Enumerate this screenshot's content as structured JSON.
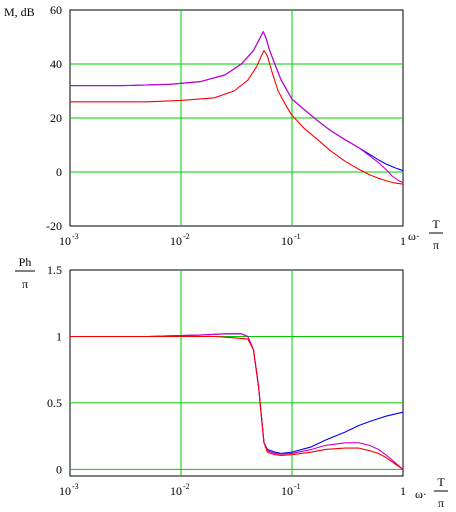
{
  "chart_data": [
    {
      "type": "line",
      "title": "",
      "ylabel": "M, dB",
      "xlabel": {
        "prefix": "ω·",
        "num": "T",
        "den": "π"
      },
      "x_scale": "log",
      "xlim": [
        0.001,
        1
      ],
      "ylim": [
        -20,
        60
      ],
      "x_ticks": [
        {
          "base": "10",
          "exp": "-3"
        },
        {
          "base": "10",
          "exp": "-2"
        },
        {
          "base": "10",
          "exp": "-1"
        },
        {
          "base": "1",
          "exp": ""
        }
      ],
      "y_ticks": [
        "-20",
        "0",
        "20",
        "40",
        "60"
      ],
      "y_tick_values": [
        -20,
        0,
        20,
        40,
        60
      ],
      "grid": true,
      "series": [
        {
          "color": "#0000ff",
          "points": [
            [
              0.001,
              32
            ],
            [
              0.003,
              32
            ],
            [
              0.008,
              32.5
            ],
            [
              0.015,
              33.5
            ],
            [
              0.025,
              36
            ],
            [
              0.035,
              40
            ],
            [
              0.045,
              45
            ],
            [
              0.052,
              50
            ],
            [
              0.055,
              52
            ],
            [
              0.058,
              50
            ],
            [
              0.063,
              45
            ],
            [
              0.07,
              40
            ],
            [
              0.08,
              34
            ],
            [
              0.1,
              27
            ],
            [
              0.13,
              23
            ],
            [
              0.17,
              19
            ],
            [
              0.22,
              15.5
            ],
            [
              0.3,
              12
            ],
            [
              0.4,
              9
            ],
            [
              0.5,
              6.5
            ],
            [
              0.6,
              4.5
            ],
            [
              0.7,
              3
            ],
            [
              0.85,
              1.5
            ],
            [
              1,
              0.5
            ]
          ]
        },
        {
          "color": "#cc00cc",
          "points": [
            [
              0.001,
              32
            ],
            [
              0.003,
              32
            ],
            [
              0.008,
              32.5
            ],
            [
              0.015,
              33.5
            ],
            [
              0.025,
              36
            ],
            [
              0.035,
              40
            ],
            [
              0.045,
              45
            ],
            [
              0.052,
              50
            ],
            [
              0.055,
              52
            ],
            [
              0.058,
              50
            ],
            [
              0.063,
              45
            ],
            [
              0.07,
              40
            ],
            [
              0.08,
              34
            ],
            [
              0.1,
              27
            ],
            [
              0.13,
              23
            ],
            [
              0.17,
              19
            ],
            [
              0.22,
              15.5
            ],
            [
              0.3,
              12
            ],
            [
              0.4,
              9
            ],
            [
              0.5,
              6
            ],
            [
              0.6,
              3.5
            ],
            [
              0.7,
              1
            ],
            [
              0.8,
              -1.5
            ],
            [
              0.9,
              -3
            ],
            [
              1,
              -4
            ]
          ]
        },
        {
          "color": "#ff0000",
          "points": [
            [
              0.001,
              26
            ],
            [
              0.005,
              26
            ],
            [
              0.01,
              26.5
            ],
            [
              0.02,
              27.5
            ],
            [
              0.03,
              30
            ],
            [
              0.04,
              34
            ],
            [
              0.048,
              39
            ],
            [
              0.053,
              43
            ],
            [
              0.056,
              45
            ],
            [
              0.06,
              43
            ],
            [
              0.065,
              38
            ],
            [
              0.075,
              30
            ],
            [
              0.09,
              24
            ],
            [
              0.1,
              21
            ],
            [
              0.13,
              16
            ],
            [
              0.17,
              12
            ],
            [
              0.22,
              8
            ],
            [
              0.3,
              4
            ],
            [
              0.4,
              1
            ],
            [
              0.5,
              -1
            ],
            [
              0.6,
              -2.3
            ],
            [
              0.7,
              -3.2
            ],
            [
              0.85,
              -4.1
            ],
            [
              1,
              -4.5
            ]
          ]
        }
      ]
    },
    {
      "type": "line",
      "title": "",
      "ylabel": {
        "num": "Ph",
        "den": "π"
      },
      "xlabel": {
        "prefix": "ω·",
        "num": "T",
        "den": "π"
      },
      "x_scale": "log",
      "xlim": [
        0.001,
        1
      ],
      "ylim": [
        -0.05,
        1.5
      ],
      "x_ticks": [
        {
          "base": "10",
          "exp": "-3"
        },
        {
          "base": "10",
          "exp": "-2"
        },
        {
          "base": "10",
          "exp": "-1"
        },
        {
          "base": "1",
          "exp": ""
        }
      ],
      "y_ticks": [
        "0",
        "0.5",
        "1",
        "1.5"
      ],
      "y_tick_values": [
        0,
        0.5,
        1,
        1.5
      ],
      "grid": true,
      "series": [
        {
          "color": "#0000ff",
          "points": [
            [
              0.001,
              1
            ],
            [
              0.005,
              1
            ],
            [
              0.008,
              1.005
            ],
            [
              0.015,
              1.01
            ],
            [
              0.025,
              1.02
            ],
            [
              0.035,
              1.02
            ],
            [
              0.04,
              1.0
            ],
            [
              0.045,
              0.9
            ],
            [
              0.05,
              0.62
            ],
            [
              0.053,
              0.4
            ],
            [
              0.056,
              0.2
            ],
            [
              0.06,
              0.15
            ],
            [
              0.07,
              0.13
            ],
            [
              0.08,
              0.12
            ],
            [
              0.1,
              0.13
            ],
            [
              0.15,
              0.17
            ],
            [
              0.2,
              0.22
            ],
            [
              0.3,
              0.28
            ],
            [
              0.4,
              0.33
            ],
            [
              0.5,
              0.36
            ],
            [
              0.7,
              0.4
            ],
            [
              1,
              0.43
            ]
          ]
        },
        {
          "color": "#cc00cc",
          "points": [
            [
              0.001,
              1
            ],
            [
              0.005,
              1
            ],
            [
              0.008,
              1.005
            ],
            [
              0.015,
              1.01
            ],
            [
              0.025,
              1.02
            ],
            [
              0.035,
              1.02
            ],
            [
              0.04,
              1.0
            ],
            [
              0.045,
              0.9
            ],
            [
              0.05,
              0.62
            ],
            [
              0.053,
              0.4
            ],
            [
              0.056,
              0.2
            ],
            [
              0.06,
              0.14
            ],
            [
              0.07,
              0.12
            ],
            [
              0.08,
              0.115
            ],
            [
              0.1,
              0.12
            ],
            [
              0.15,
              0.15
            ],
            [
              0.2,
              0.18
            ],
            [
              0.3,
              0.2
            ],
            [
              0.4,
              0.2
            ],
            [
              0.5,
              0.18
            ],
            [
              0.6,
              0.15
            ],
            [
              0.7,
              0.11
            ],
            [
              0.85,
              0.05
            ],
            [
              1,
              0.0
            ]
          ]
        },
        {
          "color": "#ff0000",
          "points": [
            [
              0.001,
              1
            ],
            [
              0.01,
              1
            ],
            [
              0.02,
              1
            ],
            [
              0.03,
              0.99
            ],
            [
              0.04,
              0.98
            ],
            [
              0.045,
              0.9
            ],
            [
              0.05,
              0.62
            ],
            [
              0.053,
              0.4
            ],
            [
              0.056,
              0.2
            ],
            [
              0.06,
              0.13
            ],
            [
              0.07,
              0.11
            ],
            [
              0.08,
              0.105
            ],
            [
              0.1,
              0.11
            ],
            [
              0.15,
              0.13
            ],
            [
              0.2,
              0.15
            ],
            [
              0.3,
              0.16
            ],
            [
              0.4,
              0.16
            ],
            [
              0.5,
              0.14
            ],
            [
              0.6,
              0.12
            ],
            [
              0.7,
              0.09
            ],
            [
              0.85,
              0.04
            ],
            [
              1,
              0.0
            ]
          ]
        }
      ]
    }
  ]
}
